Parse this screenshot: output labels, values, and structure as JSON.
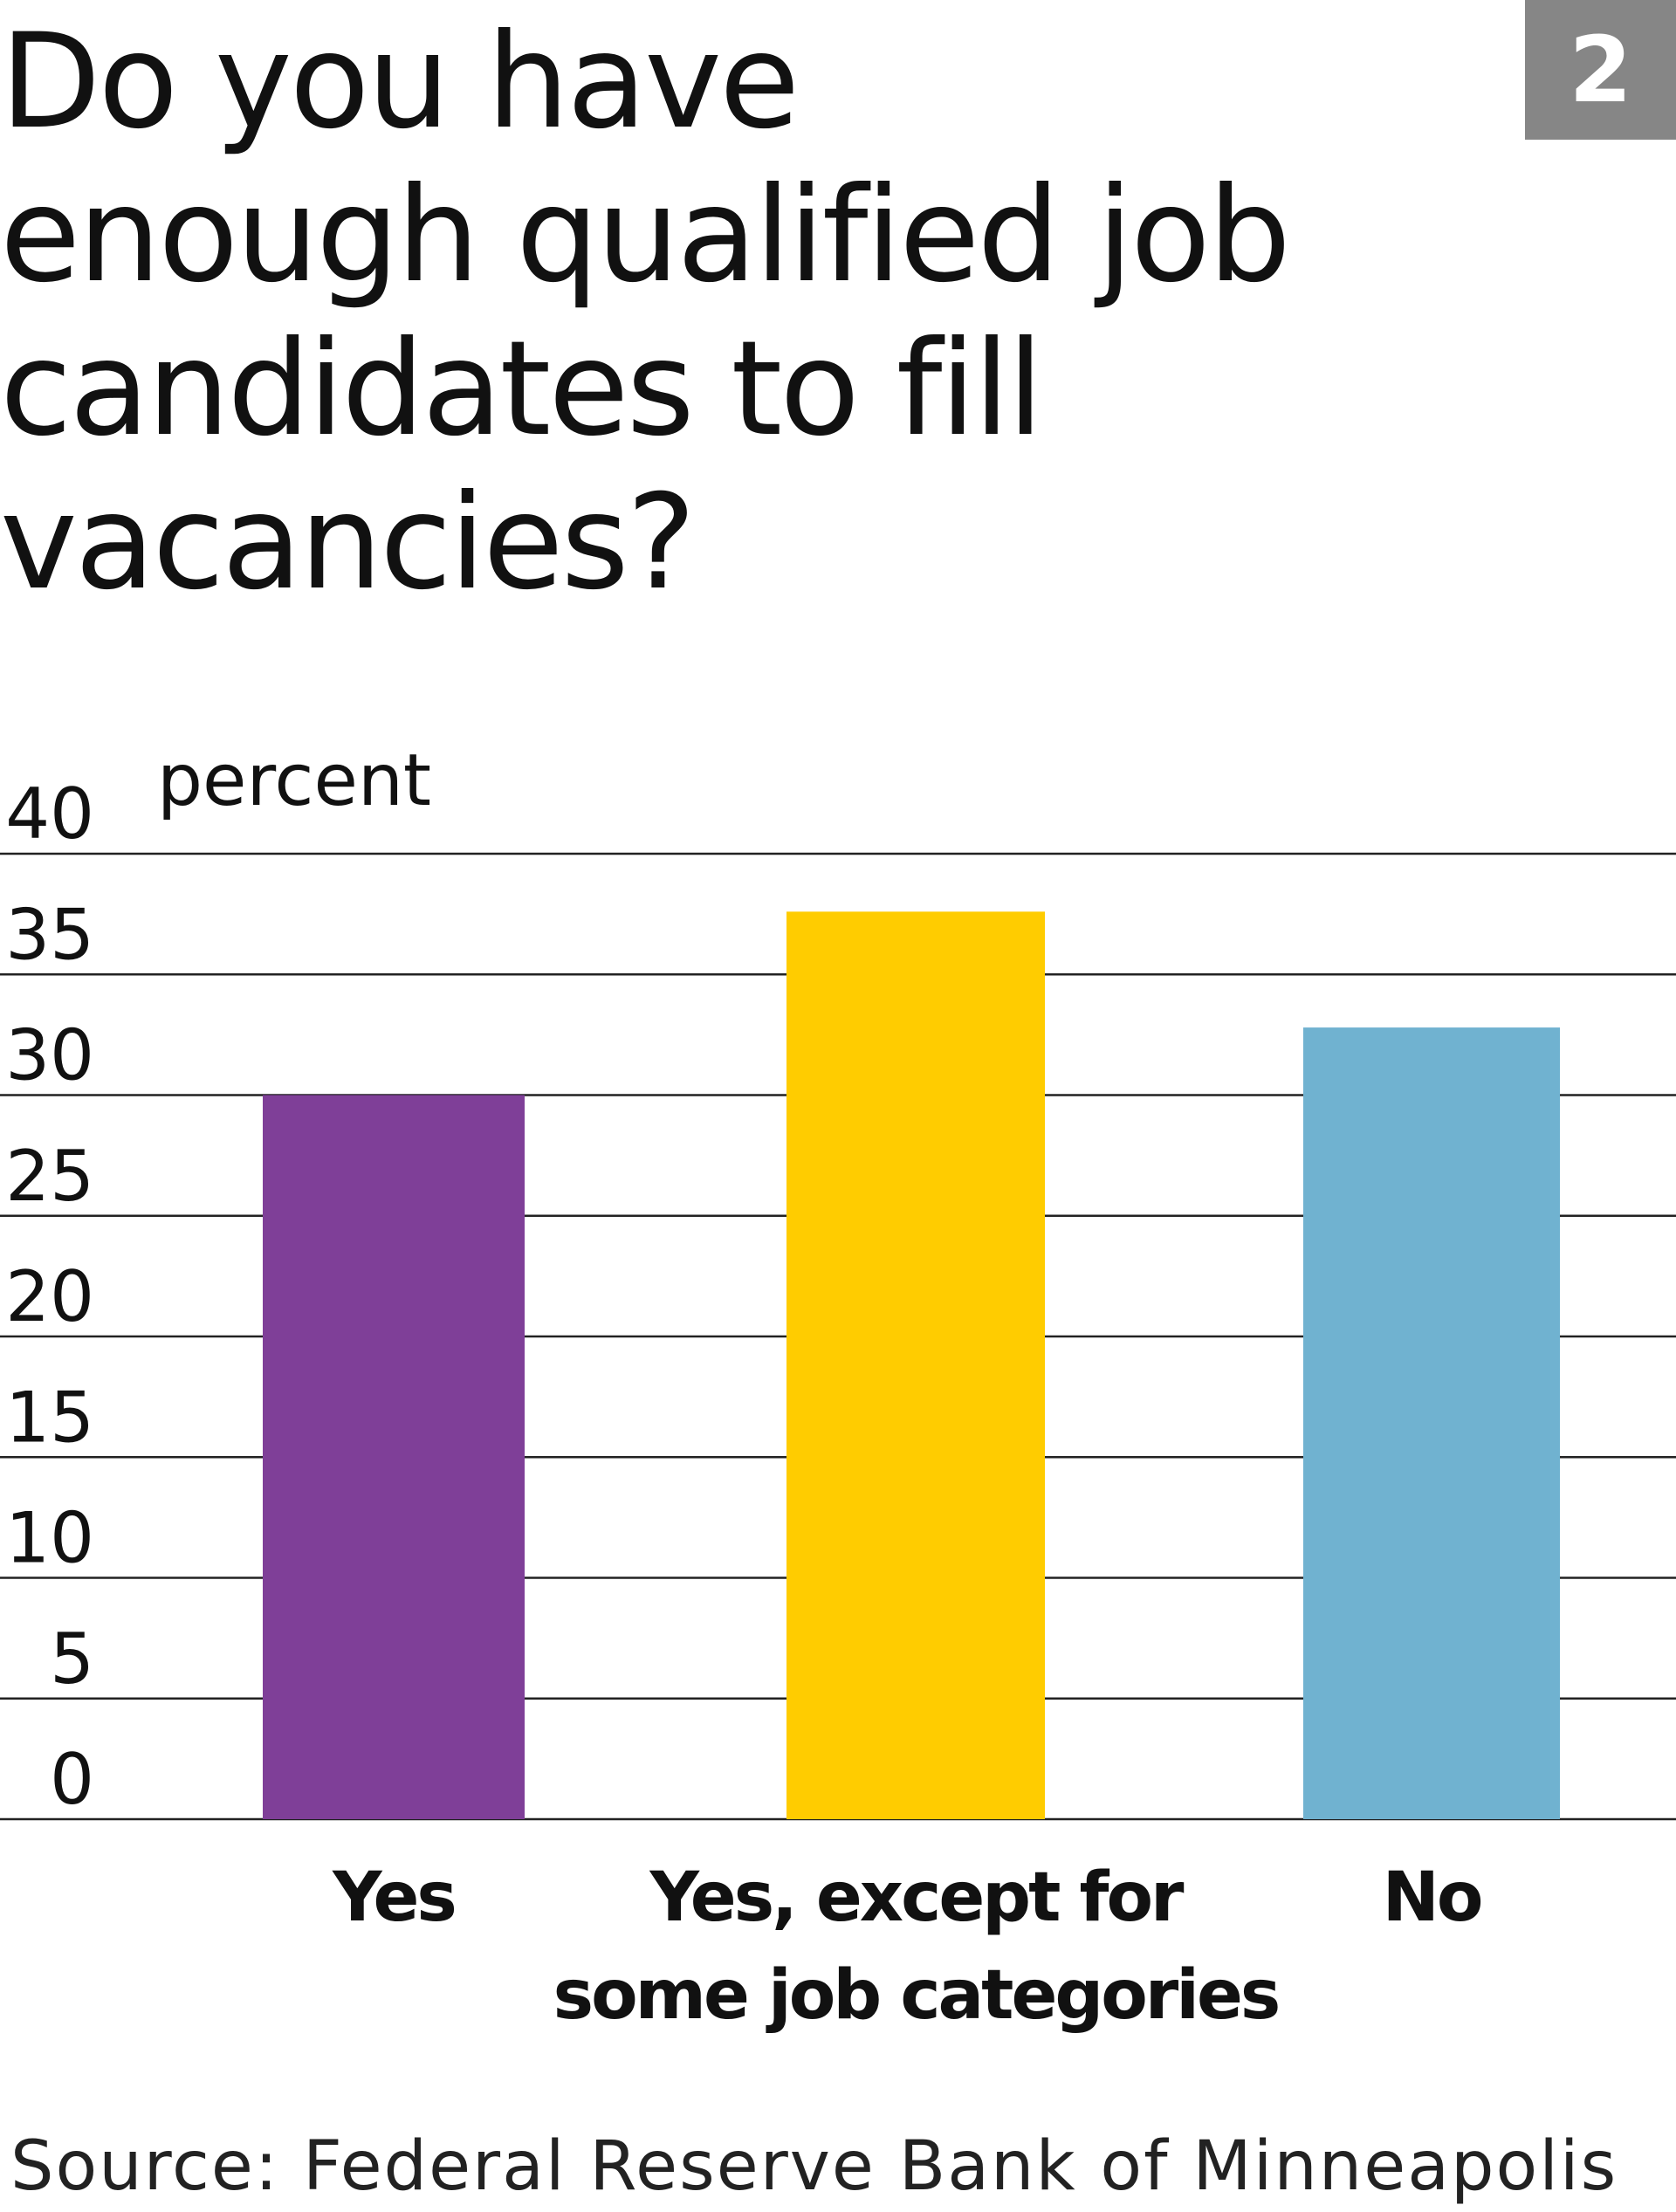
{
  "badge": "2",
  "chart_data": {
    "type": "bar",
    "title": "Do you have enough qualified job candidates to fill vacancies?",
    "ylabel": "percent",
    "ylim": [
      0,
      40
    ],
    "yticks": [
      0,
      5,
      10,
      15,
      20,
      25,
      30,
      35,
      40
    ],
    "grid": true,
    "categories": [
      [
        "Yes"
      ],
      [
        "Yes, except for",
        "some job categories"
      ],
      [
        "No"
      ]
    ],
    "values": [
      30,
      37.6,
      32.8
    ],
    "colors": [
      "#7f3f98",
      "#ffcc00",
      "#70b2d0"
    ],
    "source": "Source: Federal Reserve Bank of Minneapolis"
  }
}
